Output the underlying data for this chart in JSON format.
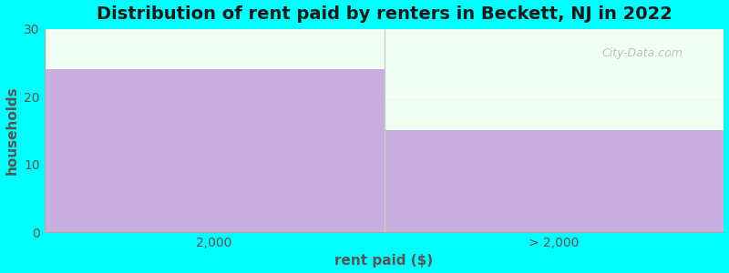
{
  "categories": [
    "2,000",
    "> 2,000"
  ],
  "values": [
    24,
    15
  ],
  "bar_color": "#c9aee0",
  "title": "Distribution of rent paid by renters in Beckett, NJ in 2022",
  "xlabel": "rent paid ($)",
  "ylabel": "households",
  "ylim": [
    0,
    30
  ],
  "yticks": [
    0,
    10,
    20,
    30
  ],
  "background_outer": "#00ffff",
  "background_inner": "#f0fff4",
  "title_fontsize": 14,
  "label_fontsize": 11,
  "tick_fontsize": 10,
  "axis_color": "#555555",
  "watermark": "City-Data.com",
  "grid_color": "#e8e8e8"
}
